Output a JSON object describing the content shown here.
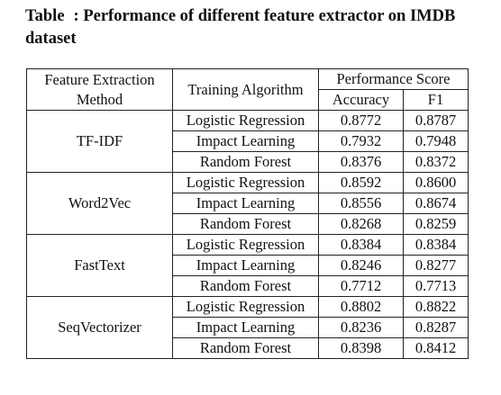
{
  "caption": {
    "label": "Table",
    "text": ": Performance of different feature extractor on IMDB dataset"
  },
  "table": {
    "headers": {
      "method_line1": "Feature Extraction",
      "method_line2": "Method",
      "algorithm": "Training Algorithm",
      "performance": "Performance Score",
      "accuracy": "Accuracy",
      "f1": "F1"
    },
    "groups": [
      {
        "method": "TF-IDF",
        "rows": [
          {
            "algorithm": "Logistic Regression",
            "accuracy": "0.8772",
            "f1": "0.8787"
          },
          {
            "algorithm": "Impact Learning",
            "accuracy": "0.7932",
            "f1": "0.7948"
          },
          {
            "algorithm": "Random Forest",
            "accuracy": "0.8376",
            "f1": "0.8372"
          }
        ]
      },
      {
        "method": "Word2Vec",
        "rows": [
          {
            "algorithm": "Logistic Regression",
            "accuracy": "0.8592",
            "f1": "0.8600"
          },
          {
            "algorithm": "Impact Learning",
            "accuracy": "0.8556",
            "f1": "0.8674"
          },
          {
            "algorithm": "Random Forest",
            "accuracy": "0.8268",
            "f1": "0.8259"
          }
        ]
      },
      {
        "method": "FastText",
        "rows": [
          {
            "algorithm": "Logistic Regression",
            "accuracy": "0.8384",
            "f1": "0.8384"
          },
          {
            "algorithm": "Impact Learning",
            "accuracy": "0.8246",
            "f1": "0.8277"
          },
          {
            "algorithm": "Random Forest",
            "accuracy": "0.7712",
            "f1": "0.7713"
          }
        ]
      },
      {
        "method": "SeqVectorizer",
        "rows": [
          {
            "algorithm": "Logistic Regression",
            "accuracy": "0.8802",
            "f1": "0.8822",
            "bold": true
          },
          {
            "algorithm": "Impact Learning",
            "accuracy": "0.8236",
            "f1": "0.8287"
          },
          {
            "algorithm": "Random Forest",
            "accuracy": "0.8398",
            "f1": "0.8412"
          }
        ]
      }
    ]
  }
}
